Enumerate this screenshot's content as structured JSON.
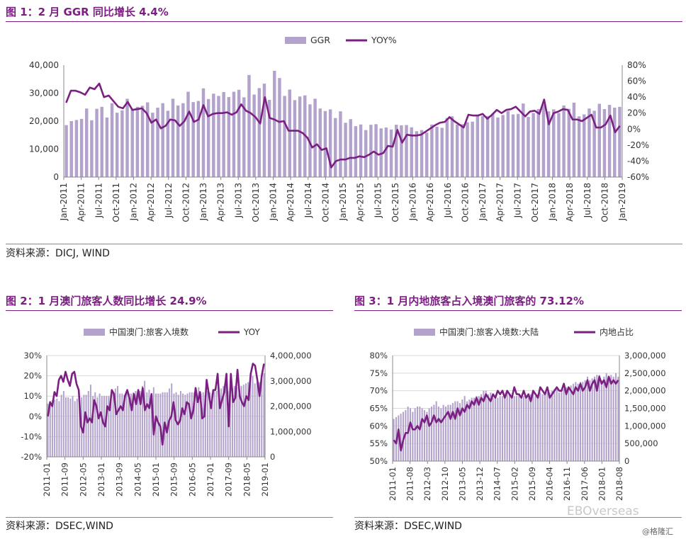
{
  "figure1": {
    "title": "图 1：2 月 GGR 同比增长 4.4%",
    "source": "资料来源：DICJ, WIND",
    "chart_data": {
      "type": "bar+line",
      "legend": [
        "GGR",
        "YOY%"
      ],
      "y_left_ticks": [
        "40,000",
        "30,000",
        "20,000",
        "10,000",
        "0"
      ],
      "y_left_range": [
        0,
        40000
      ],
      "y_right_ticks": [
        "80%",
        "60%",
        "40%",
        "20%",
        "0%",
        "-20%",
        "-40%",
        "-60%"
      ],
      "y_right_range": [
        -60,
        80
      ],
      "x_labels": [
        "Jan-2011",
        "Apr-2011",
        "Jul-2011",
        "Oct-2011",
        "Jan-2012",
        "Apr-2012",
        "Jul-2012",
        "Oct-2012",
        "Jan-2013",
        "Apr-2013",
        "Jul-2013",
        "Oct-2013",
        "Jan-2014",
        "Apr-2014",
        "Jul-2014",
        "Oct-2014",
        "Jan-2015",
        "Apr-2015",
        "Jul-2015",
        "Oct-2015",
        "Jan-2016",
        "Apr-2016",
        "Jul-2016",
        "Oct-2016",
        "Jan-2017",
        "Apr-2017",
        "Jul-2017",
        "Oct-2017",
        "Jan-2018",
        "Apr-2018",
        "Jul-2018",
        "Oct-2018",
        "Jan-2019"
      ],
      "series": [
        {
          "name": "GGR",
          "axis": "left",
          "values": [
            18571,
            20000,
            20400,
            20800,
            24500,
            20300,
            24400,
            25100,
            21300,
            26400,
            23000,
            23800,
            28000,
            24200,
            25100,
            25500,
            26700,
            23000,
            24800,
            26400,
            23700,
            28000,
            25600,
            26400,
            30500,
            26800,
            27200,
            31700,
            27900,
            29800,
            29000,
            30400,
            28600,
            30500,
            31200,
            28500,
            36500,
            29500,
            31800,
            33400,
            27600,
            38000,
            35400,
            29000,
            31300,
            27500,
            28800,
            29200,
            26000,
            28000,
            24500,
            23600,
            24200,
            21100,
            23500,
            19400,
            20700,
            18200,
            18800,
            16800,
            18700,
            18900,
            17400,
            17700,
            17000,
            18700,
            18500,
            18600,
            17800,
            16400,
            16800,
            15900,
            18800,
            18000,
            17600,
            21100,
            21700,
            18800,
            18900,
            19600,
            19800,
            21900,
            21800,
            21800,
            22700,
            21300,
            22200,
            23600,
            22400,
            22600,
            26300,
            21500,
            22900,
            24300,
            26000,
            23500,
            24200,
            22900,
            25600,
            24400,
            26600,
            21700,
            22400,
            24500,
            23700,
            26200,
            24300,
            25800,
            24800,
            25100
          ]
        },
        {
          "name": "YOY%",
          "axis": "right",
          "values": [
            33,
            48,
            48,
            46,
            43,
            52,
            50,
            57,
            40,
            42,
            35,
            28,
            26,
            34,
            24,
            25,
            26,
            20,
            8,
            12,
            1,
            4,
            12,
            11,
            4,
            10,
            22,
            9,
            12,
            30,
            16,
            19,
            20,
            20,
            21,
            18,
            21,
            31,
            23,
            20,
            15,
            7,
            40,
            14,
            12,
            9,
            10,
            -2,
            -2,
            -2,
            -5,
            -11,
            -23,
            -19,
            -26,
            -24,
            -48,
            -40,
            -38,
            -38,
            -36,
            -36,
            -34,
            -35,
            -32,
            -28,
            -32,
            -30,
            -21,
            -22,
            -1,
            -17,
            -7,
            -8,
            -8,
            -7,
            -3,
            1,
            5,
            8,
            9,
            15,
            10,
            6,
            2,
            18,
            17,
            17,
            19,
            13,
            18,
            24,
            20,
            24,
            25,
            28,
            22,
            16,
            22,
            23,
            19,
            37,
            6,
            20,
            22,
            25,
            24,
            12,
            12,
            10,
            14,
            18,
            2,
            2,
            6,
            17,
            -4,
            4
          ]
        }
      ]
    }
  },
  "figure2": {
    "title": "图 2：1 月澳门旅客人数同比增长 24.9%",
    "source": "资料来源：DSEC,WIND",
    "chart_data": {
      "type": "bar+line",
      "legend": [
        "中国澳门:旅客入境数",
        "YOY"
      ],
      "y_left_ticks": [
        "30%",
        "20%",
        "10%",
        "0%",
        "-10%",
        "-20%"
      ],
      "y_left_range": [
        -20,
        30
      ],
      "y_right_ticks": [
        "4,000,000",
        "3,000,000",
        "2,000,000",
        "1,000,000",
        "0"
      ],
      "y_right_range": [
        0,
        4000000
      ],
      "x_labels": [
        "2011-01",
        "2011-09",
        "2012-05",
        "2013-01",
        "2013-09",
        "2014-05",
        "2015-01",
        "2015-09",
        "2016-05",
        "2017-01",
        "2017-09",
        "2018-05",
        "2019-01"
      ],
      "series": [
        {
          "name": "中国澳门:旅客入境数",
          "axis": "right",
          "values": [
            2100000,
            2200000,
            2250000,
            2250000,
            2300000,
            2200000,
            2450000,
            2600000,
            2350000,
            2350000,
            2300000,
            2400000,
            2200000,
            2300000,
            2400000,
            2350000,
            2450000,
            2450000,
            2600000,
            2850000,
            2400000,
            2550000,
            2350000,
            2500000,
            2400000,
            2400000,
            2400000,
            2400000,
            2450000,
            2500000,
            2700000,
            2800000,
            2500000,
            2500000,
            2450000,
            2600000,
            2500000,
            2500000,
            2550000,
            2600000,
            2600000,
            2600000,
            2800000,
            3000000,
            2550000,
            2650000,
            2500000,
            2750000,
            2500000,
            2500000,
            2500000,
            2550000,
            2550000,
            2550000,
            2700000,
            2900000,
            2500000,
            2550000,
            2450000,
            2600000,
            2500000,
            2450000,
            2500000,
            2550000,
            2550000,
            2550000,
            2650000,
            2750000,
            2500000,
            2550000,
            2450000,
            2600000,
            2550000,
            2500000,
            2600000,
            2600000,
            2650000,
            2700000,
            2800000,
            2950000,
            2600000,
            2700000,
            2700000,
            2800000,
            2750000,
            2800000,
            2800000,
            2850000,
            2900000,
            2950000,
            3100000,
            3200000,
            2900000,
            2950000,
            2950000,
            3100000,
            3300000
          ]
        },
        {
          "name": "YOY",
          "axis": "left",
          "values": [
            0,
            7,
            5,
            12,
            10,
            18,
            20,
            17,
            22,
            18,
            15,
            21,
            22,
            16,
            13,
            -5,
            -8,
            2,
            -3,
            -1,
            -3,
            8,
            5,
            -1,
            2,
            -3,
            -5,
            5,
            3,
            13,
            11,
            1,
            3,
            5,
            3,
            10,
            13,
            9,
            3,
            11,
            6,
            13,
            6,
            14,
            3,
            6,
            4,
            11,
            -9,
            0,
            -3,
            -5,
            -14,
            -3,
            -8,
            -2,
            0,
            7,
            -2,
            -4,
            -2,
            4,
            1,
            7,
            6,
            -1,
            3,
            14,
            7,
            12,
            -1,
            0,
            18,
            11,
            4,
            13,
            13,
            21,
            4,
            8,
            12,
            21,
            -5,
            21,
            7,
            9,
            23,
            10,
            7,
            5,
            10,
            8,
            21,
            26,
            25,
            18,
            10,
            20,
            26
          ]
        }
      ]
    }
  },
  "figure3": {
    "title": "图 3：1 月内地旅客占入境澳门旅客的 73.12%",
    "source": "资料来源：DSEC,WIND",
    "chart_data": {
      "type": "bar+line",
      "legend": [
        "中国澳门:旅客入境数:大陆",
        "内地占比"
      ],
      "y_left_ticks": [
        "80%",
        "75%",
        "70%",
        "65%",
        "60%",
        "55%",
        "50%"
      ],
      "y_left_range": [
        50,
        80
      ],
      "y_right_ticks": [
        "3,000,000",
        "2,500,000",
        "2,000,000",
        "1,500,000",
        "1,000,000",
        "500,000",
        "0"
      ],
      "y_right_range": [
        0,
        3000000
      ],
      "x_labels": [
        "2011-01",
        "2011-08",
        "2012-03",
        "2012-10",
        "2013-05",
        "2013-12",
        "2014-07",
        "2015-02",
        "2015-09",
        "2016-04",
        "2016-11",
        "2017-06",
        "2018-01",
        "2018-08"
      ],
      "series": [
        {
          "name": "中国澳门:旅客入境数:大陆",
          "axis": "right",
          "values": [
            1200000,
            1250000,
            1300000,
            1350000,
            1400000,
            1450000,
            1550000,
            1500000,
            1400000,
            1500000,
            1550000,
            1550000,
            1500000,
            1450000,
            1400000,
            1500000,
            1550000,
            1600000,
            1700000,
            1550000,
            1500000,
            1600000,
            1550000,
            1600000,
            1600000,
            1650000,
            1700000,
            1700000,
            1650000,
            1750000,
            1850000,
            1700000,
            1750000,
            1800000,
            1800000,
            1850000,
            1850000,
            1900000,
            2000000,
            2000000,
            1900000,
            1950000,
            1800000,
            1850000,
            1800000,
            1850000,
            1850000,
            1900000,
            1950000,
            1900000,
            1800000,
            1850000,
            1850000,
            1900000,
            1800000,
            1850000,
            1850000,
            1900000,
            1900000,
            1950000,
            1850000,
            1900000,
            1950000,
            1900000,
            1950000,
            1950000,
            1950000,
            2000000,
            2050000,
            2050000,
            1950000,
            2000000,
            2050000,
            2100000,
            2100000,
            2150000,
            2200000,
            2250000,
            2200000,
            2250000,
            2250000,
            2300000,
            2400000,
            2300000,
            2350000,
            2400000,
            2450000,
            2450000,
            2300000,
            2400000,
            2500000,
            2400000,
            2450000,
            2400000,
            2500000,
            2400000
          ]
        },
        {
          "name": "内地占比",
          "axis": "left",
          "values": [
            56,
            55,
            59,
            53,
            56,
            58,
            58,
            61,
            59,
            59,
            60,
            59,
            62,
            61,
            63,
            60,
            61,
            63,
            61,
            62,
            61,
            62,
            63,
            64,
            62,
            64,
            62,
            65,
            63,
            65,
            64,
            66,
            65,
            67,
            66,
            68,
            66,
            68,
            67,
            69,
            68,
            67,
            69,
            68,
            70,
            69,
            70,
            68,
            70,
            69,
            68,
            71,
            69,
            69,
            68,
            70,
            68,
            69,
            67,
            70,
            69,
            68,
            71,
            70,
            69,
            71,
            68,
            69,
            70,
            71,
            70,
            70,
            72,
            69,
            71,
            70,
            69,
            71,
            70,
            72,
            70,
            71,
            73,
            70,
            72,
            73,
            70,
            74,
            72,
            73,
            71,
            74,
            72,
            73,
            72,
            73
          ]
        }
      ]
    }
  },
  "watermark": {
    "wechat": "EBOverseas",
    "brand": "@格隆汇"
  }
}
